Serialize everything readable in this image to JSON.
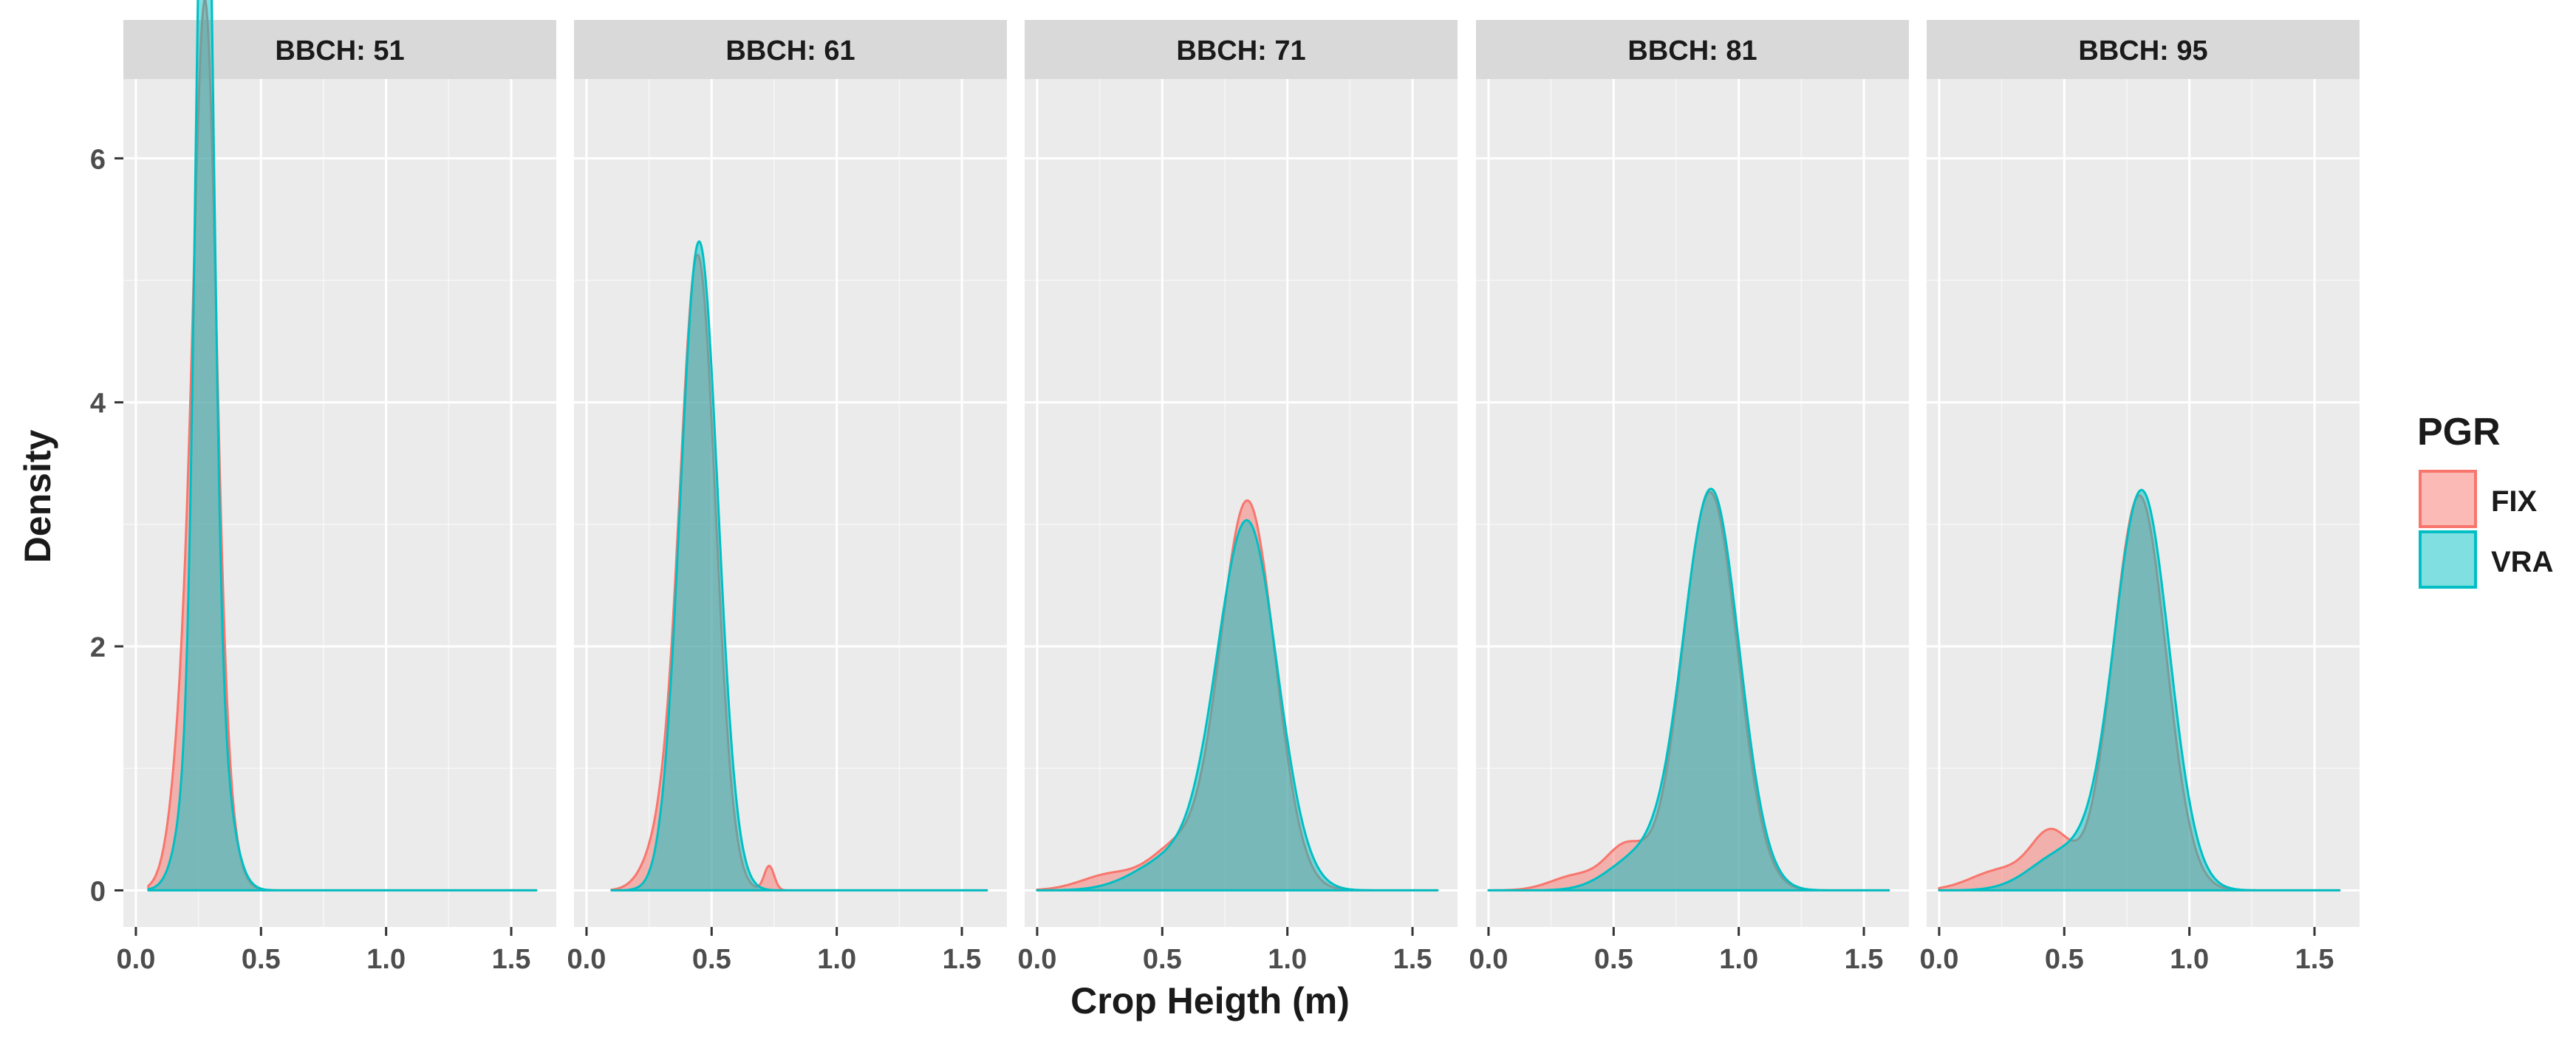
{
  "colors": {
    "panel_bg": "#ebebeb",
    "strip_bg": "#d9d9d9",
    "grid_major": "#ffffff",
    "text": "#1a1a1a",
    "axis_text": "#4d4d4d",
    "tick": "#333333"
  },
  "chart_data": {
    "type": "area",
    "title": "",
    "xlabel": "Crop Heigth (m)",
    "ylabel": "Density",
    "xlim": [
      -0.05,
      1.68
    ],
    "ylim": [
      -0.3,
      6.65
    ],
    "x_ticks": [
      0.0,
      0.5,
      1.0,
      1.5
    ],
    "x_tick_labels": [
      "0.0",
      "0.5",
      "1.0",
      "1.5"
    ],
    "x_minor": [
      0.25,
      0.75,
      1.25
    ],
    "y_ticks": [
      0,
      2,
      4,
      6
    ],
    "y_tick_labels": [
      "0",
      "2",
      "4",
      "6"
    ],
    "y_minor": [
      1,
      3,
      5
    ],
    "grid": true,
    "legend": {
      "title": "PGR",
      "position": "right",
      "entries": [
        {
          "label": "FIX",
          "fill": "#f8766d",
          "fill_opacity": 0.5,
          "stroke": "#f8766d"
        },
        {
          "label": "VRA",
          "fill": "#00bfc4",
          "fill_opacity": 0.5,
          "stroke": "#00bfc4"
        }
      ]
    },
    "panels": [
      {
        "strip": "BBCH: 51",
        "series": [
          {
            "name": "FIX",
            "x_range": [
              0.05,
              1.6
            ],
            "components": [
              {
                "w": 0.6,
                "mu": 0.26,
                "sd": 0.07
              },
              {
                "w": 0.4,
                "mu": 0.28,
                "sd": 0.04
              }
            ]
          },
          {
            "name": "VRA",
            "x_range": [
              0.05,
              1.6
            ],
            "components": [
              {
                "w": 0.65,
                "mu": 0.275,
                "sd": 0.034
              },
              {
                "w": 0.35,
                "mu": 0.28,
                "sd": 0.07
              }
            ]
          }
        ]
      },
      {
        "strip": "BBCH: 61",
        "series": [
          {
            "name": "FIX",
            "x_range": [
              0.1,
              1.6
            ],
            "components": [
              {
                "w": 0.92,
                "mu": 0.445,
                "sd": 0.071
              },
              {
                "w": 0.06,
                "mu": 0.3,
                "sd": 0.07
              },
              {
                "w": 0.01,
                "mu": 0.73,
                "sd": 0.02
              }
            ]
          },
          {
            "name": "VRA",
            "x_range": [
              0.1,
              1.6
            ],
            "components": [
              {
                "w": 1.0,
                "mu": 0.45,
                "sd": 0.075
              }
            ]
          }
        ]
      },
      {
        "strip": "BBCH: 71",
        "series": [
          {
            "name": "FIX",
            "x_range": [
              0.0,
              1.6
            ],
            "components": [
              {
                "w": 0.88,
                "mu": 0.84,
                "sd": 0.11
              },
              {
                "w": 0.08,
                "mu": 0.55,
                "sd": 0.1
              },
              {
                "w": 0.04,
                "mu": 0.3,
                "sd": 0.12
              }
            ]
          },
          {
            "name": "VRA",
            "x_range": [
              0.0,
              1.6
            ],
            "components": [
              {
                "w": 0.9,
                "mu": 0.84,
                "sd": 0.12
              },
              {
                "w": 0.1,
                "mu": 0.55,
                "sd": 0.15
              }
            ]
          }
        ]
      },
      {
        "strip": "BBCH: 81",
        "series": [
          {
            "name": "FIX",
            "x_range": [
              0.0,
              1.6
            ],
            "components": [
              {
                "w": 0.9,
                "mu": 0.885,
                "sd": 0.11
              },
              {
                "w": 0.07,
                "mu": 0.55,
                "sd": 0.08
              },
              {
                "w": 0.03,
                "mu": 0.35,
                "sd": 0.1
              }
            ]
          },
          {
            "name": "VRA",
            "x_range": [
              0.0,
              1.6
            ],
            "components": [
              {
                "w": 0.92,
                "mu": 0.89,
                "sd": 0.112
              },
              {
                "w": 0.08,
                "mu": 0.6,
                "sd": 0.12
              }
            ]
          }
        ]
      },
      {
        "strip": "BBCH: 95",
        "series": [
          {
            "name": "FIX",
            "x_range": [
              0.0,
              1.6
            ],
            "components": [
              {
                "w": 0.86,
                "mu": 0.8,
                "sd": 0.106
              },
              {
                "w": 0.09,
                "mu": 0.45,
                "sd": 0.08
              },
              {
                "w": 0.05,
                "mu": 0.25,
                "sd": 0.12
              }
            ]
          },
          {
            "name": "VRA",
            "x_range": [
              0.0,
              1.6
            ],
            "components": [
              {
                "w": 0.9,
                "mu": 0.81,
                "sd": 0.11
              },
              {
                "w": 0.1,
                "mu": 0.5,
                "sd": 0.13
              }
            ]
          }
        ]
      }
    ]
  }
}
